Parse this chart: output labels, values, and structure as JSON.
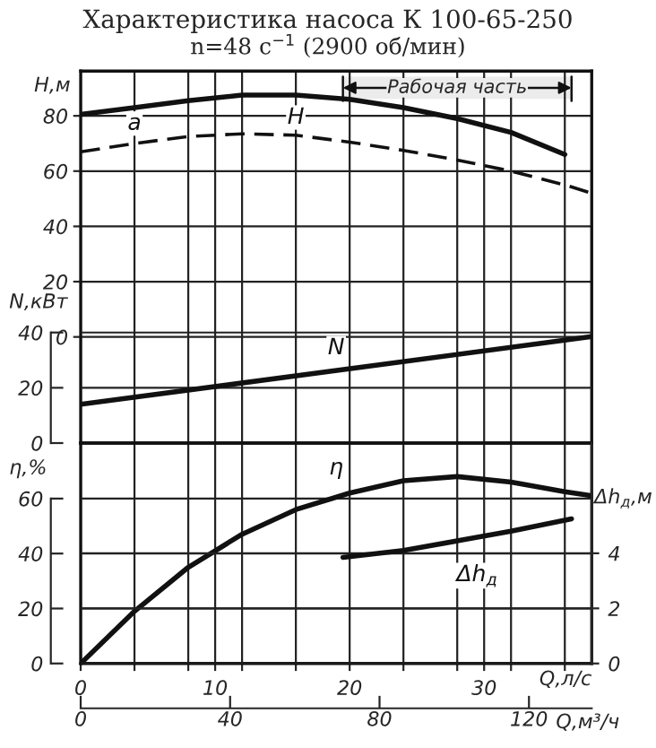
{
  "chart_data": [
    {
      "type": "line",
      "title": "Характеристика насоса К 100-65-250",
      "subtitle": "n=48 с$^{−1}$ (2900 об/мин)",
      "ylabel": "H,м",
      "y2label": "N,кВт",
      "x": [
        0,
        4,
        8,
        12,
        16,
        20,
        24,
        28,
        32,
        36
      ],
      "xlim": [
        0,
        38
      ],
      "xticks": [
        0,
        {
          "value": 4,
          "label": null
        },
        {
          "value": 8,
          "label": null
        },
        10,
        {
          "value": 12,
          "label": null
        },
        {
          "value": 16,
          "label": null
        },
        20,
        {
          "value": 24,
          "label": null
        },
        {
          "value": 28,
          "label": null
        },
        30,
        {
          "value": 32,
          "label": null
        },
        {
          "value": 36,
          "label": null
        }
      ],
      "tick_labels": "y",
      "ylim": [
        -38.4,
        96.2
      ],
      "yticks": [
        0,
        20,
        40,
        60,
        80
      ],
      "y2lim": [
        0,
        134.6
      ],
      "y2ticks": [
        0,
        20,
        40
      ],
      "grid": true,
      "series": [
        {
          "name": "H",
          "color": "#111111",
          "line_style": "solid",
          "values": [
            80.5,
            83,
            85.5,
            87.5,
            87.5,
            86,
            83,
            79,
            74,
            66
          ]
        },
        {
          "name": "a",
          "color": "#111111",
          "line_style": "dashed",
          "x": [
            0,
            4,
            8,
            12,
            16,
            20,
            24,
            28,
            32,
            36,
            38
          ],
          "values": [
            67,
            70,
            72.5,
            73.5,
            73,
            70.5,
            67.5,
            64,
            60,
            55,
            52
          ]
        },
        {
          "name": "N",
          "color": "#111111",
          "axis": "y2",
          "line_style": "solid",
          "x": [
            0,
            38
          ],
          "values": [
            14,
            38.5
          ]
        }
      ],
      "bands": [
        {
          "axis": "x",
          "from": 19.5,
          "to": 36.5,
          "label": "Рабочая часть",
          "color": "#ececec"
        }
      ]
    },
    {
      "type": "line",
      "xlabel": "Q,л/с",
      "x2label": "Q,м³/ч",
      "ylabel": "η,%",
      "y2label": "Δh$_{д}$,м",
      "xlim": [
        0,
        38
      ],
      "xticks": [
        0,
        {
          "value": 4,
          "label": null
        },
        {
          "value": 8,
          "label": null
        },
        10,
        {
          "value": 12,
          "label": null
        },
        {
          "value": 16,
          "label": null
        },
        20,
        {
          "value": 24,
          "label": null
        },
        {
          "value": 28,
          "label": null
        },
        30,
        {
          "value": 32,
          "label": null
        },
        {
          "value": 36,
          "label": null
        }
      ],
      "x2lim": [
        0,
        136.8
      ],
      "x2ticks": [
        0,
        40,
        80,
        120
      ],
      "ylim": [
        0,
        80.2
      ],
      "yticks": [
        0,
        20,
        40,
        60
      ],
      "y2lim": [
        0,
        8
      ],
      "y2ticks": [
        0,
        2,
        4
      ],
      "grid": true,
      "series": [
        {
          "name": "η",
          "color": "#111111",
          "line_style": "solid",
          "x": [
            0,
            4,
            8,
            12,
            16,
            20,
            24,
            28,
            32,
            36,
            38
          ],
          "values": [
            0,
            19,
            35,
            47,
            56,
            62,
            66.5,
            68,
            66,
            62.5,
            61
          ]
        },
        {
          "name": "Δh$_{д}$",
          "color": "#111111",
          "axis": "y2",
          "line_style": "solid",
          "x": [
            19.5,
            24,
            28,
            32,
            36.5
          ],
          "values": [
            3.85,
            4.1,
            4.45,
            4.8,
            5.25
          ]
        }
      ]
    }
  ]
}
